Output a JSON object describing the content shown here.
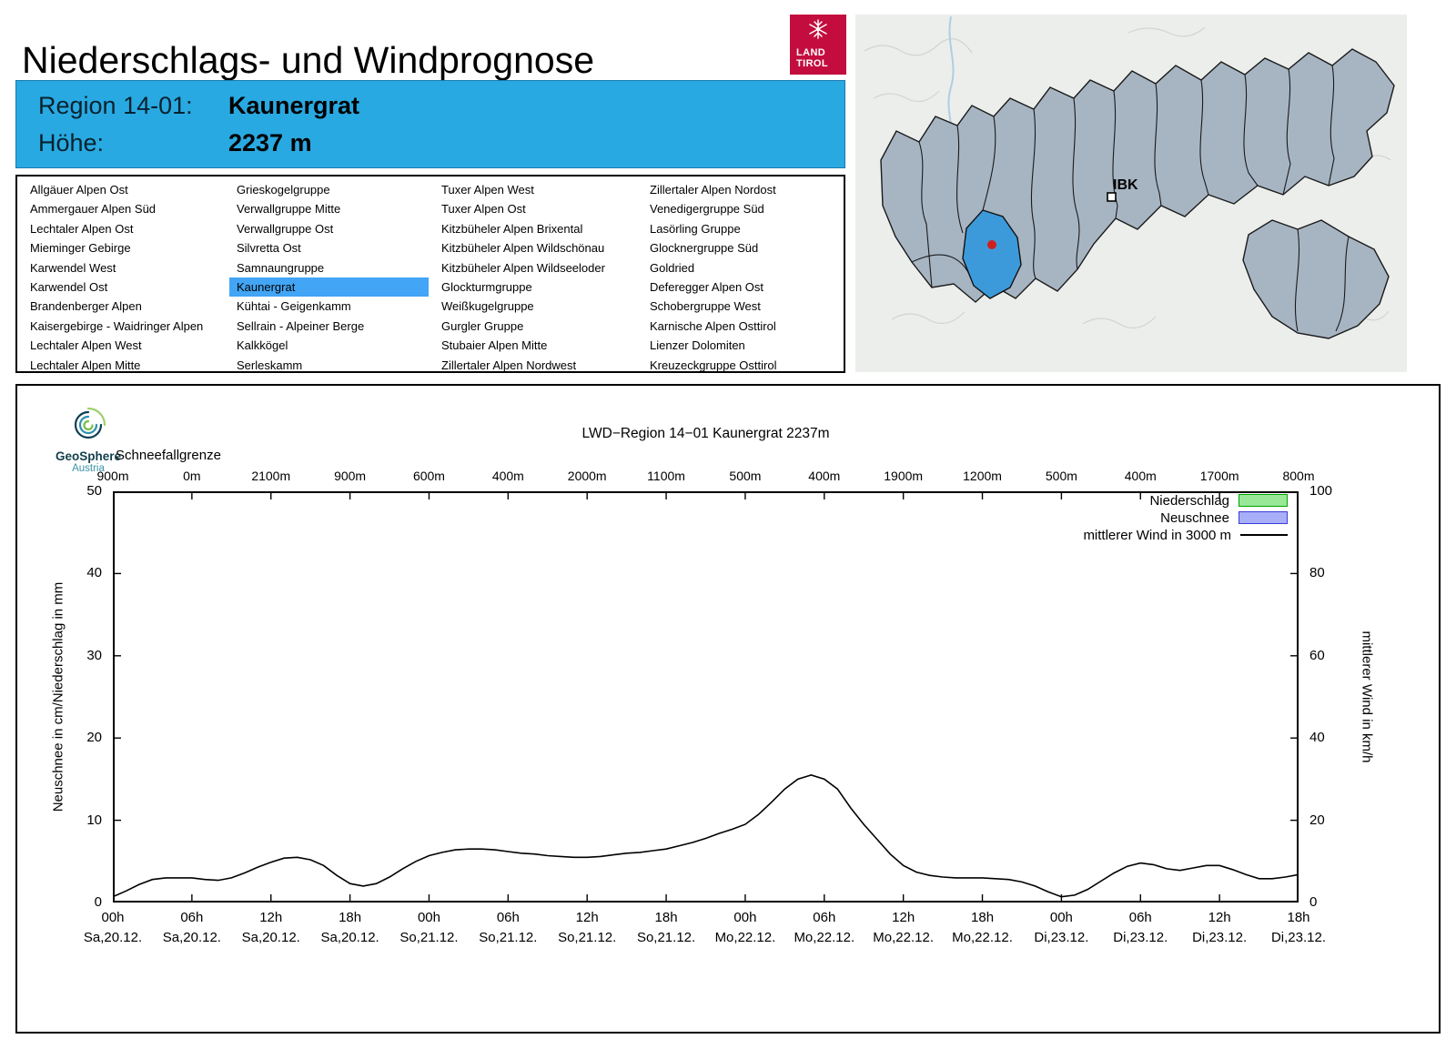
{
  "page_title": "Niederschlags- und Windprognose",
  "land_tirol_logo": {
    "line1": "LAND",
    "line2": "TIROL"
  },
  "map": {
    "city_label": "IBK"
  },
  "colors": {
    "header_bg": "#29a9e2",
    "selected_list_item_bg": "#42a5f5",
    "map_selected_region": "#3d9ada",
    "map_region_fill": "#a7b5c3",
    "logo_red": "#c30d3e",
    "station_dot": "#d01f1f"
  },
  "region_header": {
    "region_label": "Region 14-01:",
    "region_value": "Kaunergrat",
    "altitude_label": "Höhe:",
    "altitude_value": "2237 m"
  },
  "region_list": {
    "selected": "Kaunergrat",
    "columns": [
      [
        "Allgäuer Alpen Ost",
        "Ammergauer Alpen Süd",
        "Lechtaler Alpen Ost",
        "Mieminger Gebirge",
        "Karwendel West",
        "Karwendel Ost",
        "Brandenberger Alpen",
        "Kaisergebirge - Waidringer Alpen",
        "Lechtaler Alpen West",
        "Lechtaler Alpen Mitte"
      ],
      [
        "Grieskogelgruppe",
        "Verwallgruppe Mitte",
        "Verwallgruppe Ost",
        "Silvretta Ost",
        "Samnaungruppe",
        "Kaunergrat",
        "Kühtai - Geigenkamm",
        "Sellrain - Alpeiner Berge",
        "Kalkkögel",
        "Serleskamm"
      ],
      [
        "Tuxer Alpen West",
        "Tuxer Alpen Ost",
        "Kitzbüheler Alpen Brixental",
        "Kitzbüheler Alpen Wildschönau",
        "Kitzbüheler Alpen Wildseeloder",
        "Glockturmgruppe",
        "Weißkugelgruppe",
        "Gurgler Gruppe",
        "Stubaier Alpen Mitte",
        "Zillertaler Alpen Nordwest"
      ],
      [
        "Zillertaler Alpen Nordost",
        "Venedigergruppe Süd",
        "Lasörling Gruppe",
        "Glocknergruppe Süd",
        "Goldried",
        "Deferegger Alpen Ost",
        "Schobergruppe West",
        "Karnische Alpen Osttirol",
        "Lienzer Dolomiten",
        "Kreuzeckgruppe Osttirol"
      ]
    ]
  },
  "geosphere": {
    "name": "GeoSphere",
    "country": "Austria"
  },
  "chart_data": {
    "type": "line",
    "title": "LWD−Region 14−01 Kaunergrat 2237m",
    "schneefallgrenze": {
      "label": "Schneefallgrenze",
      "values": [
        "900m",
        "0m",
        "2100m",
        "900m",
        "600m",
        "400m",
        "2000m",
        "1100m",
        "500m",
        "400m",
        "1900m",
        "1200m",
        "500m",
        "400m",
        "1700m",
        "800m"
      ]
    },
    "left_axis": {
      "label": "Neuschnee in cm/Niederschlag in mm",
      "min": 0,
      "max": 50,
      "ticks": [
        0,
        10,
        20,
        30,
        40,
        50
      ]
    },
    "right_axis": {
      "label": "mittlerer Wind in km/h",
      "min": 0,
      "max": 100,
      "ticks": [
        0,
        20,
        40,
        60,
        80,
        100
      ]
    },
    "x_axis": {
      "tick_times": [
        "00h",
        "06h",
        "12h",
        "18h",
        "00h",
        "06h",
        "12h",
        "18h",
        "00h",
        "06h",
        "12h",
        "18h",
        "00h",
        "06h",
        "12h",
        "18h"
      ],
      "tick_dates": [
        "Sa,20.12.",
        "Sa,20.12.",
        "Sa,20.12.",
        "Sa,20.12.",
        "So,21.12.",
        "So,21.12.",
        "So,21.12.",
        "So,21.12.",
        "Mo,22.12.",
        "Mo,22.12.",
        "Mo,22.12.",
        "Mo,22.12.",
        "Di,23.12.",
        "Di,23.12.",
        "Di,23.12.",
        "Di,23.12."
      ],
      "grid": false
    },
    "legend": [
      {
        "label": "Niederschlag",
        "swatch": "box",
        "fill": "#98e898",
        "border": "#00a400"
      },
      {
        "label": "Neuschnee",
        "swatch": "box",
        "fill": "#a8aef8",
        "border": "#3c3cd8"
      },
      {
        "label": "mittlerer Wind in 3000 m",
        "swatch": "line",
        "color": "#000000"
      }
    ],
    "series": [
      {
        "name": "mittlerer Wind in 3000 m",
        "axis": "right",
        "unit": "km/h",
        "start": "Sa 20.12. 00h",
        "step_hours": 1,
        "values": [
          1.4,
          2.8,
          4.4,
          5.6,
          6,
          6,
          6,
          5.6,
          5.4,
          6,
          7.2,
          8.6,
          9.8,
          10.8,
          11,
          10.4,
          9,
          6.6,
          4.6,
          4,
          4.6,
          6.2,
          8.2,
          10,
          11.4,
          12.2,
          12.8,
          13,
          13,
          12.8,
          12.4,
          12,
          11.8,
          11.4,
          11.2,
          11,
          11,
          11.2,
          11.6,
          12,
          12.2,
          12.6,
          13,
          13.8,
          14.6,
          15.6,
          16.8,
          17.8,
          19,
          21.4,
          24.4,
          27.6,
          30,
          31,
          30,
          27.6,
          23,
          19,
          15.4,
          11.8,
          9,
          7.4,
          6.6,
          6.2,
          6,
          6,
          6,
          5.8,
          5.6,
          5,
          4,
          2.6,
          1.4,
          1.8,
          3.2,
          5.2,
          7.2,
          8.8,
          9.6,
          9.2,
          8.2,
          7.8,
          8.4,
          9,
          9,
          8,
          6.8,
          5.8,
          5.8,
          6.2,
          6.8
        ]
      }
    ],
    "niederschlag_bars": {
      "name": "Niederschlag",
      "unit": "mm",
      "values": []
    },
    "neuschnee_bars": {
      "name": "Neuschnee",
      "unit": "cm",
      "values": []
    }
  }
}
